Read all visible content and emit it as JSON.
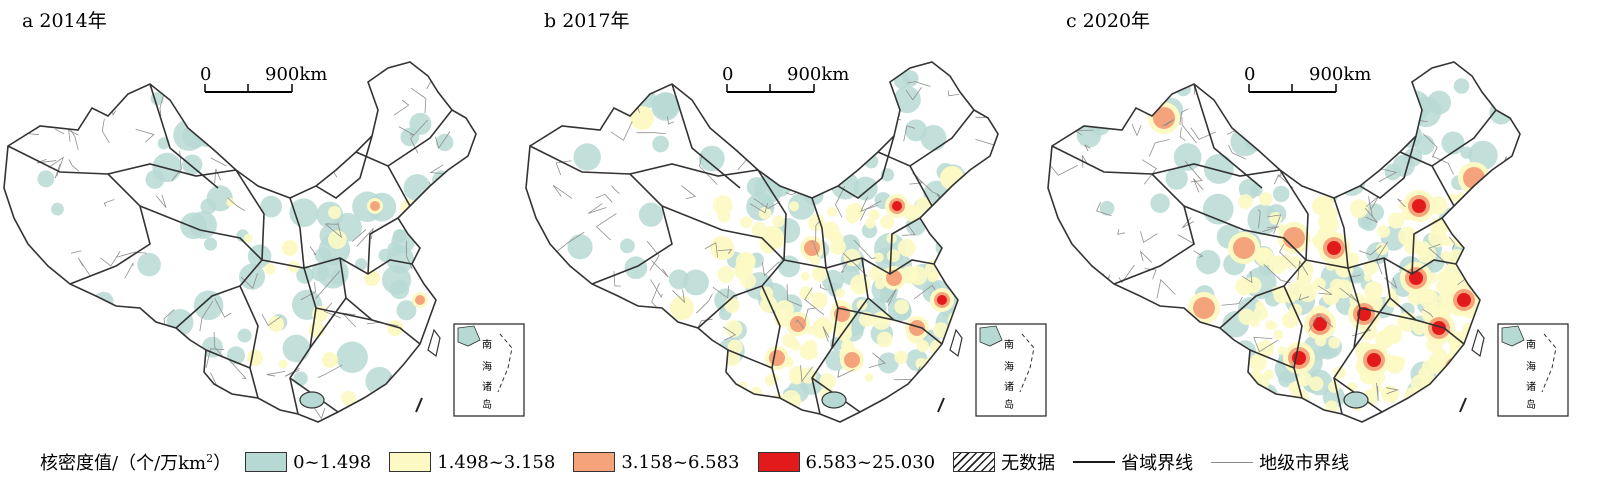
{
  "panels": [
    {
      "id": "a",
      "title": "a 2014年",
      "scale_zero": "0",
      "scale_label": "900km",
      "intensity": 0
    },
    {
      "id": "b",
      "title": "b 2017年",
      "scale_zero": "0",
      "scale_label": "900km",
      "intensity": 1
    },
    {
      "id": "c",
      "title": "c 2020年",
      "scale_zero": "0",
      "scale_label": "900km",
      "intensity": 2
    }
  ],
  "inset_labels": [
    "南",
    "海",
    "诸",
    "岛"
  ],
  "legend": {
    "title": "核密度值/（个/万km",
    "title_sup": "2",
    "title_close": "）",
    "classes": [
      {
        "label": "0~1.498",
        "color": "#b7d9d4"
      },
      {
        "label": "1.498~3.158",
        "color": "#fdf9c4"
      },
      {
        "label": "3.158~6.583",
        "color": "#f5a37a"
      },
      {
        "label": "6.583~25.030",
        "color": "#e31a1c"
      }
    ],
    "no_data": "无数据",
    "province_line": "省域界线",
    "city_line": "地级市界线"
  }
}
